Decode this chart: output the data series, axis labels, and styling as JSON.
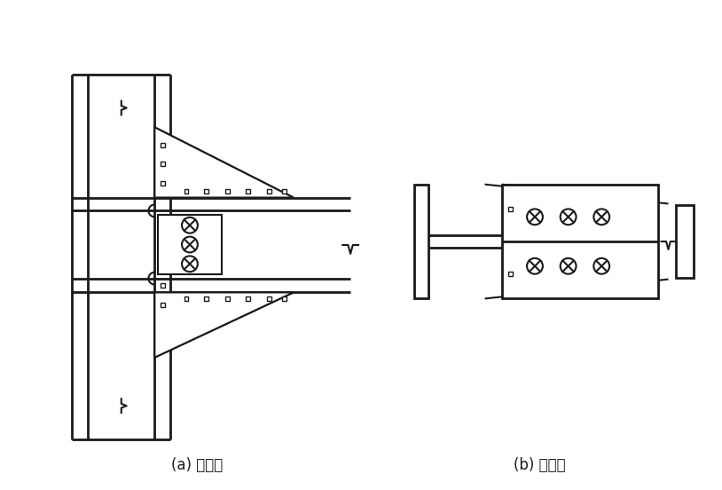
{
  "label_a": "(a) 侧视图",
  "label_b": "(b) 俯视图",
  "bg_color": "#ffffff",
  "line_color": "#1a1a1a",
  "lw_thin": 1.0,
  "lw_med": 1.5,
  "lw_thick": 2.0
}
